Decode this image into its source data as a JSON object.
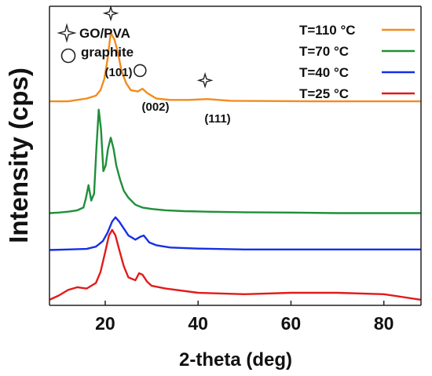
{
  "chart_data": {
    "type": "line",
    "title": "",
    "xlabel": "2-theta (deg)",
    "ylabel": "Intensity (cps)",
    "xlim": [
      8,
      88
    ],
    "xticks": [
      20,
      40,
      60,
      80
    ],
    "y_ticks_shown": false,
    "grid": false,
    "legend_position": "top-right",
    "series": [
      {
        "name": "T=110 °C",
        "color": "#F28C1E",
        "x": [
          8,
          12,
          16,
          18,
          19,
          19.8,
          20.5,
          21.2,
          22,
          22.8,
          23.5,
          24.5,
          25.5,
          27,
          28,
          29,
          31,
          34,
          38,
          42,
          47,
          55,
          65,
          75,
          88
        ],
        "y": [
          0.67,
          0.67,
          0.68,
          0.69,
          0.71,
          0.75,
          0.82,
          0.915,
          0.89,
          0.84,
          0.78,
          0.735,
          0.71,
          0.705,
          0.715,
          0.7,
          0.68,
          0.675,
          0.675,
          0.678,
          0.672,
          0.671,
          0.67,
          0.67,
          0.67
        ]
      },
      {
        "name": "T=70  °C",
        "color": "#1F8F3A",
        "x": [
          8,
          10,
          12,
          14,
          15.3,
          15.8,
          16.4,
          17,
          17.6,
          18.1,
          18.6,
          19.1,
          19.6,
          20.1,
          20.6,
          21.2,
          21.8,
          22.4,
          23.2,
          24,
          25,
          26.5,
          28,
          30,
          33,
          37,
          42,
          50,
          60,
          70,
          80,
          88
        ],
        "y": [
          0.27,
          0.272,
          0.275,
          0.28,
          0.29,
          0.32,
          0.37,
          0.315,
          0.34,
          0.5,
          0.64,
          0.57,
          0.42,
          0.44,
          0.5,
          0.54,
          0.5,
          0.44,
          0.39,
          0.35,
          0.325,
          0.3,
          0.29,
          0.285,
          0.28,
          0.277,
          0.275,
          0.273,
          0.272,
          0.27,
          0.27,
          0.27
        ]
      },
      {
        "name": "T=40 °C",
        "color": "#1630E6",
        "x": [
          8,
          12,
          16,
          18,
          19.5,
          20.5,
          21.5,
          22.2,
          23,
          24,
          25,
          26.5,
          27.5,
          28.3,
          29.5,
          31,
          34,
          40,
          50,
          60,
          70,
          80,
          88
        ],
        "y": [
          0.138,
          0.14,
          0.142,
          0.15,
          0.17,
          0.2,
          0.24,
          0.255,
          0.24,
          0.215,
          0.19,
          0.175,
          0.185,
          0.19,
          0.165,
          0.155,
          0.147,
          0.143,
          0.14,
          0.14,
          0.14,
          0.14,
          0.14
        ]
      },
      {
        "name": "T=25 °C",
        "color": "#E11B1B",
        "x": [
          8,
          10,
          12,
          14,
          16,
          18,
          19,
          20,
          20.8,
          21.5,
          22.2,
          23,
          24,
          25,
          26.5,
          27.3,
          28,
          29,
          30,
          33,
          40,
          50,
          60,
          70,
          80,
          88
        ],
        "y": [
          -0.04,
          -0.025,
          -0.005,
          0.005,
          0.0,
          0.02,
          0.06,
          0.13,
          0.19,
          0.21,
          0.19,
          0.14,
          0.08,
          0.04,
          0.03,
          0.055,
          0.05,
          0.025,
          0.01,
          0.0,
          -0.015,
          -0.02,
          -0.015,
          -0.015,
          -0.02,
          -0.04
        ]
      }
    ],
    "annotations": {
      "peak_label_101": "(101)",
      "peak_label_002": "(002)",
      "peak_label_111": "(111)",
      "markers": [
        {
          "type": "star",
          "x": 21.2,
          "y": 0.985
        },
        {
          "type": "circle",
          "x": 27.5,
          "y": 0.78
        },
        {
          "type": "star",
          "x": 41.5,
          "y": 0.745
        }
      ]
    },
    "marker_legend": [
      {
        "symbol": "star",
        "label": "GO/PVA"
      },
      {
        "symbol": "circle",
        "label": "graphite"
      }
    ]
  }
}
